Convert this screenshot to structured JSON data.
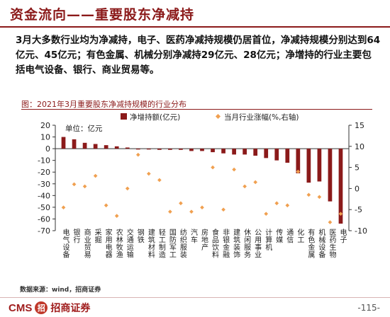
{
  "header": {
    "title": "资金流向——重要股东净减持"
  },
  "body": {
    "paragraph": "3月大多数行业均为净减持，电子、医药净减持规模仍居首位，净减持规模分别达到64亿元、45亿元；有色金属、机械分别净减持29亿元、28亿元；净增持的行业主要包括电气设备、银行、商业贸易等。"
  },
  "chart_caption": "图：2021年3月重要股东净减持规模的行业分布",
  "footer": {
    "source": "数据来源：wind，招商证券",
    "brand_cms": "CMS",
    "brand_logo": "招",
    "brand_name": "招商证券",
    "page": "-115-"
  },
  "colors": {
    "accent": "#8b1a1a",
    "bar": "#8b1a1a",
    "dot": "#f0a050"
  },
  "chart_data": {
    "type": "bar",
    "unit_note": "单位：亿元",
    "categories": [
      "电气设备",
      "银行",
      "商业贸易",
      "采掘",
      "家用电器",
      "农林牧渔",
      "交通运输",
      "钢铁",
      "建筑材料",
      "轻工制造",
      "国防军工",
      "纺织服装",
      "汽车",
      "房地产",
      "食品饮料",
      "非银金融",
      "建筑装饰",
      "休闲服务",
      "公用事业",
      "计算机",
      "传媒",
      "通信",
      "化工",
      "有色金属",
      "机械设备",
      "医药生物",
      "电子"
    ],
    "series": [
      {
        "name": "净增持额(亿元)",
        "axis": "left",
        "type": "bar",
        "values": [
          10,
          8,
          5,
          4,
          3,
          2,
          1,
          0,
          0,
          -1,
          -1,
          -1,
          -2,
          -2,
          -3,
          -4,
          -5,
          -5,
          -6,
          -8,
          -10,
          -12,
          -21,
          -29,
          -28,
          -45,
          -64
        ]
      },
      {
        "name": "当月行业涨幅(%,右轴)",
        "axis": "right",
        "type": "scatter",
        "values": [
          -4.5,
          1.0,
          0.5,
          3.0,
          -4.0,
          -6.5,
          0.0,
          8.0,
          3.5,
          2.0,
          -5.5,
          -3.5,
          -5.5,
          -4.5,
          5.0,
          -5.0,
          4.5,
          0.5,
          1.5,
          -6.0,
          -3.5,
          -4.0,
          4.0,
          -1.5,
          -2.0,
          -8.0,
          -6.0
        ]
      }
    ],
    "ylim_left": [
      -70,
      20
    ],
    "yticks_left": [
      20,
      10,
      0,
      -10,
      -20,
      -30,
      -40,
      -50,
      -60,
      -70
    ],
    "ylim_right": [
      -10,
      15
    ],
    "yticks_right": [
      15,
      10,
      5,
      0,
      -5,
      -10
    ],
    "legend_position": "top",
    "grid": false
  }
}
